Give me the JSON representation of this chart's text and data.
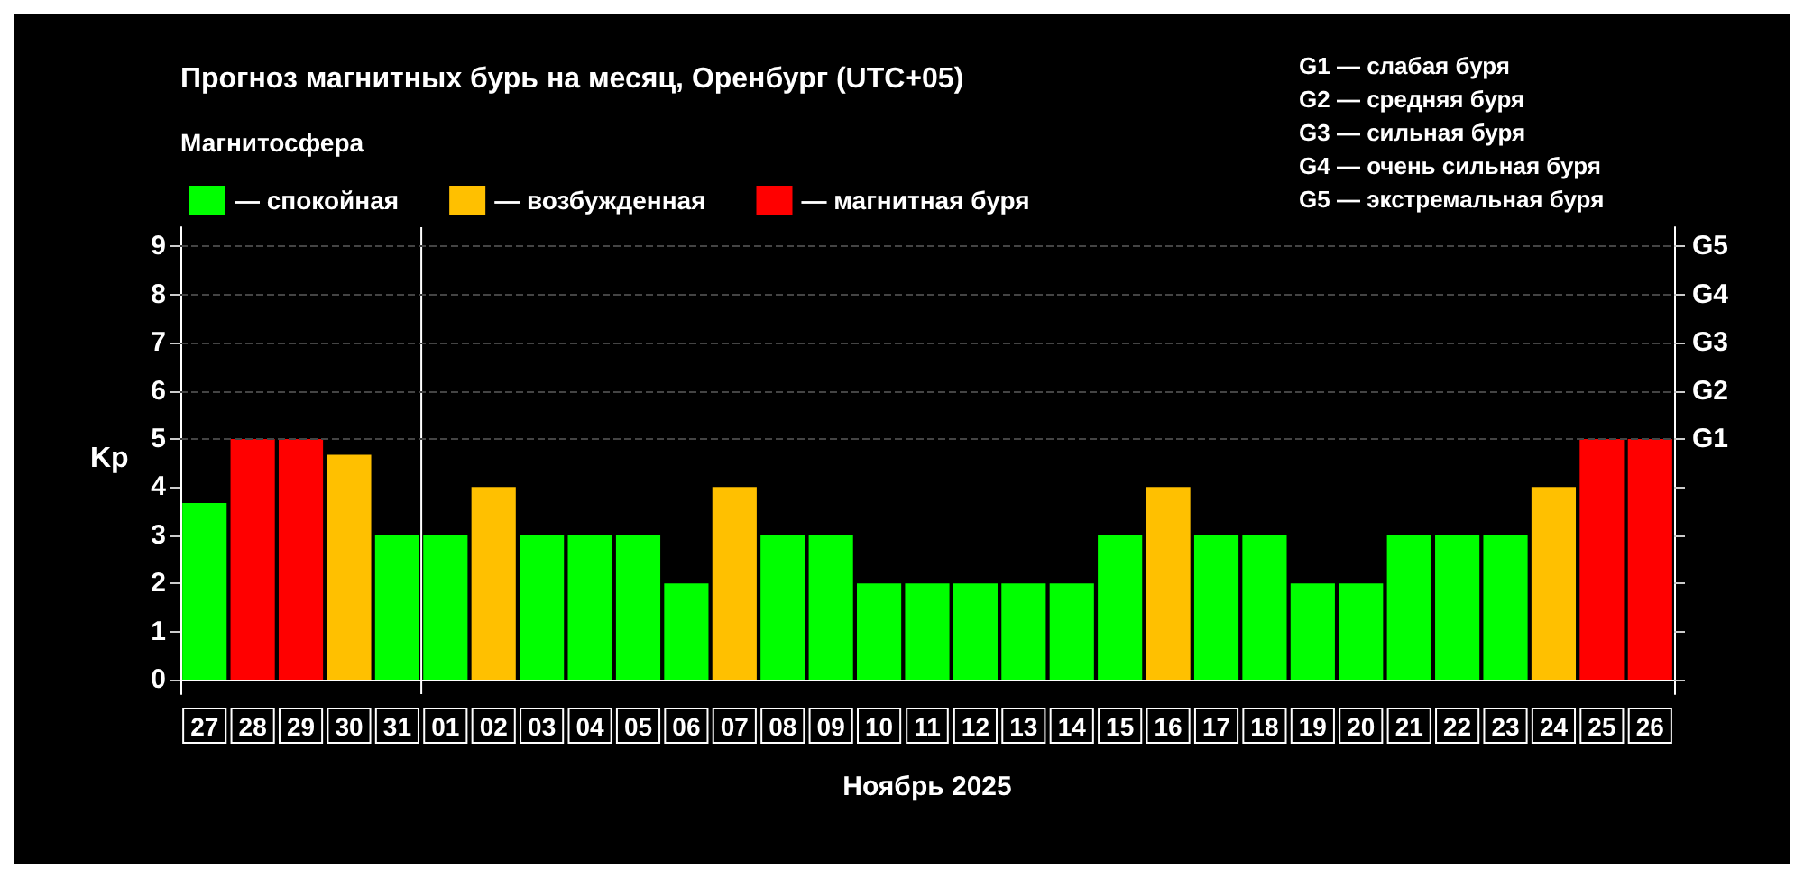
{
  "chart_data": {
    "type": "bar",
    "title": "Прогноз магнитных бурь на месяц, Оренбург (UTC+05)",
    "legend_title": "Магнитосфера",
    "xlabel": "Ноябрь 2025",
    "ylabel": "Kp",
    "categories": [
      "27",
      "28",
      "29",
      "30",
      "31",
      "01",
      "02",
      "03",
      "04",
      "05",
      "06",
      "07",
      "08",
      "09",
      "10",
      "11",
      "12",
      "13",
      "14",
      "15",
      "16",
      "17",
      "18",
      "19",
      "20",
      "21",
      "22",
      "23",
      "24",
      "25",
      "26"
    ],
    "series": [
      {
        "name": "— спокойная",
        "color": "#00ff00",
        "values": [
          3.67,
          null,
          null,
          null,
          3,
          3,
          null,
          3,
          3,
          3,
          2,
          null,
          3,
          3,
          2,
          2,
          2,
          2,
          2,
          3,
          null,
          3,
          3,
          2,
          2,
          3,
          3,
          3,
          null,
          null,
          null
        ]
      },
      {
        "name": "— возбужденная",
        "color": "#ffc000",
        "values": [
          null,
          null,
          null,
          4.67,
          null,
          null,
          4,
          null,
          null,
          null,
          null,
          4,
          null,
          null,
          null,
          null,
          null,
          null,
          null,
          null,
          4,
          null,
          null,
          null,
          null,
          null,
          null,
          null,
          4,
          null,
          null
        ]
      },
      {
        "name": "— магнитная буря",
        "color": "#ff0000",
        "values": [
          null,
          5,
          5,
          null,
          null,
          null,
          null,
          null,
          null,
          null,
          null,
          null,
          null,
          null,
          null,
          null,
          null,
          null,
          null,
          null,
          null,
          null,
          null,
          null,
          null,
          null,
          null,
          null,
          null,
          5,
          5
        ]
      }
    ],
    "ylim": [
      -0.3,
      9.4
    ],
    "yticks": [
      0,
      1,
      2,
      3,
      4,
      5,
      6,
      7,
      8,
      9
    ],
    "ref_lines": [
      {
        "axis": "x",
        "value": "01",
        "color": "#ffffff"
      },
      {
        "axis": "y",
        "value": 5,
        "label": "G1",
        "color": "#444444",
        "line_style": "dashed"
      },
      {
        "axis": "y",
        "value": 6,
        "label": "G2",
        "color": "#444444",
        "line_style": "dashed"
      },
      {
        "axis": "y",
        "value": 7,
        "label": "G3",
        "color": "#444444",
        "line_style": "dashed"
      },
      {
        "axis": "y",
        "value": 8,
        "label": "G4",
        "color": "#444444",
        "line_style": "dashed"
      },
      {
        "axis": "y",
        "value": 9,
        "label": "G5",
        "color": "#444444",
        "line_style": "dashed"
      }
    ],
    "legend": "top left",
    "annotations": [
      "G1 — слабая буря",
      "G2 — средняя буря",
      "G3 — сильная буря",
      "G4 — очень сильная буря",
      "G5 — экстремальная буря"
    ]
  }
}
